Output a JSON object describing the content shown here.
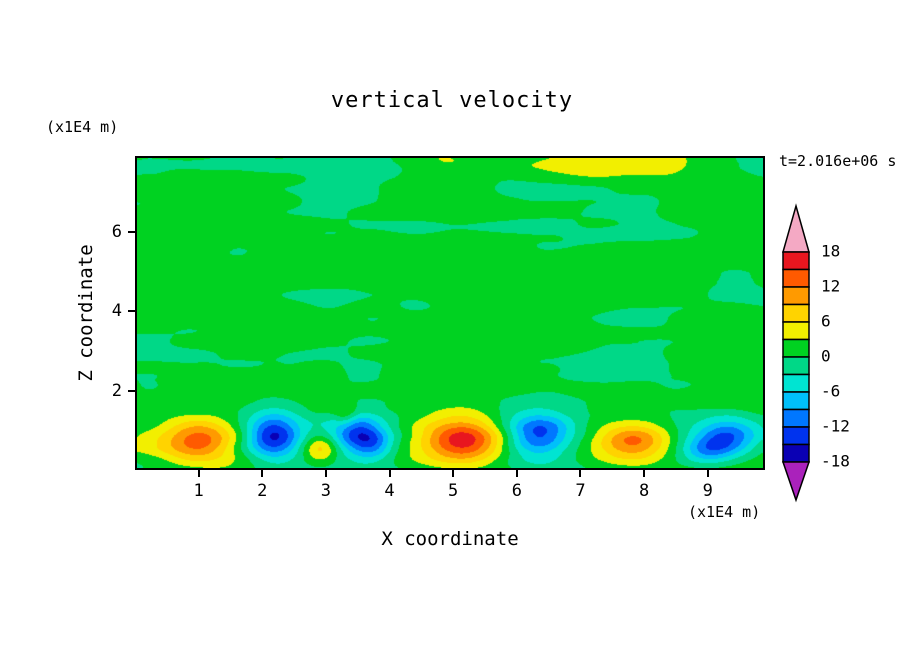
{
  "chart_data": {
    "type": "heatmap",
    "title": "vertical velocity",
    "time_annotation": "t=2.016e+06 s",
    "xlabel": "X coordinate",
    "ylabel": "Z coordinate",
    "x_axis_unit": "(x1E4 m)",
    "y_axis_unit": "(x1E4 m)",
    "xlim": [
      0,
      9.9
    ],
    "zlim": [
      0,
      7.9
    ],
    "x_tick_labels": [
      "1",
      "2",
      "3",
      "4",
      "5",
      "6",
      "7",
      "8",
      "9"
    ],
    "z_tick_labels": [
      "2",
      "4",
      "6"
    ],
    "x_tick_values": [
      1,
      2,
      3,
      4,
      5,
      6,
      7,
      8,
      9
    ],
    "z_tick_values": [
      2,
      4,
      6
    ],
    "grid": false,
    "colorbar": {
      "labels": [
        "18",
        "12",
        "6",
        "0",
        "-6",
        "-12",
        "-18"
      ],
      "label_values": [
        18,
        12,
        6,
        0,
        -6,
        -12,
        -18
      ],
      "levels": [
        -18,
        -15,
        -12,
        -9,
        -6,
        -3,
        0,
        3,
        6,
        9,
        12,
        15,
        18
      ],
      "level_step": 3,
      "band_colors_low_to_high": [
        "#0a00b4",
        "#0033ee",
        "#0077ff",
        "#00c0fa",
        "#00e4d2",
        "#00d887",
        "#00d221",
        "#f2ef00",
        "#ffd300",
        "#ff9a00",
        "#ff5a00",
        "#e8161f"
      ],
      "under_arrow_color": "#aa22bb",
      "over_arrow_color": "#f4a9c4"
    },
    "field": {
      "description": "mostly near-zero (green) interior with convective plumes along the bottom boundary; alternating updrafts (warm colors) and downdrafts (cool colors)",
      "plumes": [
        {
          "x": 1.0,
          "z": 0.75,
          "amplitude": 10,
          "sigma_x": 0.55,
          "sigma_z": 0.5
        },
        {
          "x": 0.95,
          "z": 0.5,
          "amplitude": 4,
          "sigma_x": 1.0,
          "sigma_z": 0.55
        },
        {
          "x": 2.15,
          "z": 0.8,
          "amplitude": -12.5,
          "sigma_x": 0.4,
          "sigma_z": 0.55
        },
        {
          "x": 2.2,
          "z": 0.9,
          "amplitude": -3.5,
          "sigma_x": 0.65,
          "sigma_z": 0.75
        },
        {
          "x": 2.9,
          "z": 0.5,
          "amplitude": 8,
          "sigma_x": 0.28,
          "sigma_z": 0.35
        },
        {
          "x": 3.3,
          "z": 1.35,
          "amplitude": 4.5,
          "sigma_x": 0.18,
          "sigma_z": 0.3
        },
        {
          "x": 3.5,
          "z": 0.85,
          "amplitude": -10,
          "sigma_x": 0.4,
          "sigma_z": 0.5
        },
        {
          "x": 3.75,
          "z": 0.55,
          "amplitude": -6,
          "sigma_x": 0.3,
          "sigma_z": 0.35
        },
        {
          "x": 3.6,
          "z": 0.95,
          "amplitude": -3.5,
          "sigma_x": 0.6,
          "sigma_z": 0.7
        },
        {
          "x": 5.15,
          "z": 0.75,
          "amplitude": 13.5,
          "sigma_x": 0.6,
          "sigma_z": 0.55
        },
        {
          "x": 5.1,
          "z": 0.5,
          "amplitude": 3.5,
          "sigma_x": 1.1,
          "sigma_z": 0.55
        },
        {
          "x": 6.35,
          "z": 0.8,
          "amplitude": -12,
          "sigma_x": 0.5,
          "sigma_z": 0.55
        },
        {
          "x": 6.4,
          "z": 0.9,
          "amplitude": -3.5,
          "sigma_x": 0.75,
          "sigma_z": 0.75
        },
        {
          "x": 7.85,
          "z": 0.7,
          "amplitude": 10,
          "sigma_x": 0.55,
          "sigma_z": 0.45
        },
        {
          "x": 7.8,
          "z": 0.5,
          "amplitude": 3.5,
          "sigma_x": 0.9,
          "sigma_z": 0.5
        },
        {
          "x": 9.0,
          "z": 0.45,
          "amplitude": -7,
          "sigma_x": 0.4,
          "sigma_z": 0.35
        },
        {
          "x": 9.35,
          "z": 0.8,
          "amplitude": -9.5,
          "sigma_x": 0.45,
          "sigma_z": 0.45
        },
        {
          "x": 9.2,
          "z": 0.7,
          "amplitude": -3,
          "sigma_x": 0.7,
          "sigma_z": 0.55
        },
        {
          "x": 7.4,
          "z": 7.85,
          "amplitude": 4.5,
          "sigma_x": 0.8,
          "sigma_z": 0.45
        },
        {
          "x": 8.35,
          "z": 7.8,
          "amplitude": 3.5,
          "sigma_x": 0.45,
          "sigma_z": 0.4
        },
        {
          "x": 4.8,
          "z": 7.9,
          "amplitude": 3.2,
          "sigma_x": 0.6,
          "sigma_z": 0.4
        }
      ],
      "noise": {
        "bias": 0.7,
        "octaves": [
          {
            "amp": 1.5,
            "sx": 1.6,
            "sz": 0.55,
            "ox": 0,
            "oz": 0
          },
          {
            "amp": 0.8,
            "sx": 0.7,
            "sz": 0.3,
            "ox": 11.7,
            "oz": 5.3
          }
        ]
      }
    }
  }
}
